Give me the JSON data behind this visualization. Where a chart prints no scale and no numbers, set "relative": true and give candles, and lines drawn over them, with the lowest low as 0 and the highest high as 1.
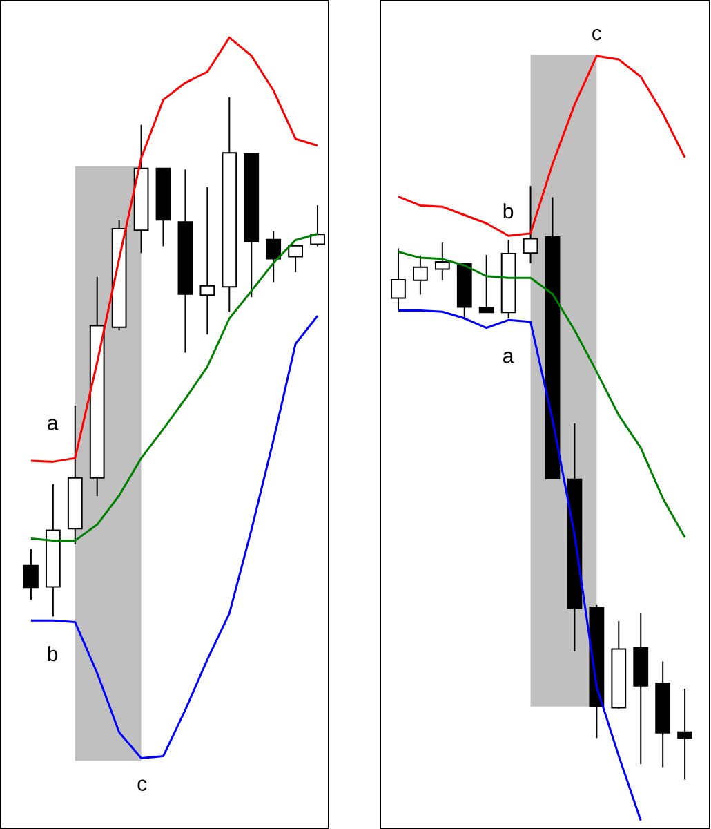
{
  "chart_data": [
    {
      "type": "candlestick",
      "relative": true,
      "categories": [
        null,
        null,
        null,
        null,
        null,
        null,
        null,
        null,
        null,
        null,
        null,
        null,
        null,
        null
      ],
      "ohlc": [
        [
          0.098,
          0.13,
          0.032,
          0.056
        ],
        [
          0.057,
          0.255,
          0,
          0.166
        ],
        [
          0.169,
          0.406,
          0.139,
          0.267
        ],
        [
          0.267,
          0.654,
          0.232,
          0.56
        ],
        [
          0.557,
          0.763,
          0.551,
          0.747
        ],
        [
          0.744,
          0.947,
          0.7,
          0.863
        ],
        [
          0.863,
          0.863,
          0.713,
          0.764
        ],
        [
          0.76,
          0.861,
          0.508,
          0.621
        ],
        [
          0.619,
          0.827,
          0.543,
          0.637
        ],
        [
          0.635,
          1,
          0.586,
          0.893
        ],
        [
          0.891,
          0.891,
          0.615,
          0.722
        ],
        [
          0.726,
          0.742,
          0.644,
          0.689
        ],
        [
          0.693,
          0.714,
          0.663,
          0.714
        ],
        [
          0.717,
          0.792,
          0.713,
          0.736
        ]
      ],
      "series": [
        {
          "type": "line",
          "color": "#ff0000",
          "values": [
            0.3,
            0.298,
            0.305,
            0.489,
            0.689,
            0.883,
            0.995,
            1.028,
            1.049,
            1.115,
            1.08,
            1.013,
            0.92,
            0.907
          ]
        },
        {
          "type": "line",
          "color": "#008000",
          "values": [
            0.15,
            0.146,
            0.146,
            0.177,
            0.233,
            0.305,
            0.361,
            0.419,
            0.481,
            0.574,
            0.627,
            0.681,
            0.725,
            0.737
          ]
        },
        {
          "type": "line",
          "color": "#0000ff",
          "values": [
            -0.008,
            -0.008,
            -0.011,
            -0.109,
            -0.223,
            -0.273,
            -0.269,
            -0.18,
            -0.083,
            0.006,
            0.167,
            0.34,
            0.525,
            0.579
          ]
        }
      ],
      "annotations": [
        "a",
        "b",
        "c"
      ]
    },
    {
      "type": "candlestick",
      "relative": true,
      "categories": [
        null,
        null,
        null,
        null,
        null,
        null,
        null,
        null,
        null,
        null,
        null,
        null,
        null,
        null
      ],
      "ohlc": [
        [
          0.811,
          0.895,
          0.791,
          0.842
        ],
        [
          0.841,
          0.883,
          0.817,
          0.863
        ],
        [
          0.86,
          0.905,
          0.841,
          0.872
        ],
        [
          0.869,
          0.869,
          0.775,
          0.796
        ],
        [
          0.795,
          0.884,
          0.787,
          0.787
        ],
        [
          0.787,
          0.909,
          0.777,
          0.886
        ],
        [
          0.887,
          1,
          0.87,
          0.911
        ],
        [
          0.914,
          0.981,
          0.507,
          0.507
        ],
        [
          0.506,
          0.6,
          0.216,
          0.289
        ],
        [
          0.29,
          0.294,
          0.07,
          0.123
        ],
        [
          0.121,
          0.267,
          0.119,
          0.22
        ],
        [
          0.222,
          0.28,
          0.026,
          0.158
        ],
        [
          0.162,
          0.199,
          0.021,
          0.079
        ],
        [
          0.08,
          0.153,
          0,
          0.07
        ]
      ],
      "series": [
        {
          "type": "line",
          "color": "#ff0000",
          "values": [
            0.982,
            0.967,
            0.965,
            0.951,
            0.937,
            0.916,
            0.92,
            1.037,
            1.137,
            1.219,
            1.213,
            1.184,
            1.122,
            1.048
          ]
        },
        {
          "type": "line",
          "color": "#008000",
          "values": [
            0.889,
            0.879,
            0.877,
            0.866,
            0.848,
            0.845,
            0.845,
            0.818,
            0.757,
            0.687,
            0.614,
            0.559,
            0.474,
            0.408
          ]
        },
        {
          "type": "line",
          "color": "#0000ff",
          "values": [
            0.79,
            0.79,
            0.788,
            0.777,
            0.761,
            0.774,
            0.771,
            0.606,
            0.412,
            0.156,
            0.04,
            -0.069,
            null,
            null
          ]
        }
      ],
      "annotations": [
        "a",
        "b",
        "c"
      ]
    }
  ]
}
